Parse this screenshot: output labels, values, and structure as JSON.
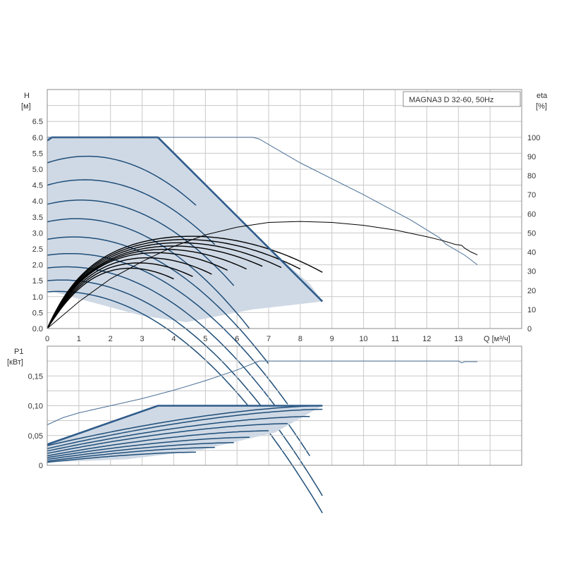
{
  "colors": {
    "envelope_fill": "#cfd9e5",
    "blue_curve": "#1f4e79",
    "max_curve": "#2f5c8a",
    "thin_curve": "#4a6f96",
    "eta_curve": "#000000",
    "grid": "#c8c8c8"
  },
  "chart_data": [
    {
      "id": "qh",
      "type": "line",
      "legend_box": "MAGNA3 D 32-60, 50Hz",
      "y_label": "H",
      "y_unit": "[м]",
      "y2_label": "eta",
      "y2_unit": "[%]",
      "x_label": "Q [м³/ч]",
      "xlim": [
        0,
        15
      ],
      "ylim": [
        0,
        7.5
      ],
      "y2lim": [
        0,
        125
      ],
      "x_ticks": [
        "0",
        "1",
        "2",
        "3",
        "4",
        "5",
        "6",
        "7",
        "8",
        "9",
        "10",
        "11",
        "12",
        "13"
      ],
      "y_ticks": [
        "0.0",
        "0.5",
        "1.0",
        "1.5",
        "2.0",
        "2.5",
        "3.0",
        "3.5",
        "4.0",
        "4.5",
        "5.0",
        "5.5",
        "6.0",
        "6.5"
      ],
      "y2_ticks": [
        "0",
        "10",
        "20",
        "30",
        "40",
        "50",
        "60",
        "70",
        "80",
        "90",
        "100"
      ],
      "grid": true,
      "envelope": [
        [
          0,
          5.95
        ],
        [
          0.2,
          6.0
        ],
        [
          3.5,
          6.0
        ],
        [
          4.5,
          5.0
        ],
        [
          6.8,
          2.75
        ],
        [
          7.6,
          2.0
        ],
        [
          8.3,
          1.4
        ],
        [
          8.7,
          0.85
        ],
        [
          6.5,
          0.6
        ],
        [
          4.4,
          0.2
        ],
        [
          3.0,
          0.4
        ],
        [
          1.5,
          0.8
        ],
        [
          0,
          1.2
        ]
      ],
      "speed_curves": [
        {
          "h0": 5.2,
          "b": 0.13,
          "xend": 4.7
        },
        {
          "h0": 4.5,
          "b": 0.12,
          "xend": 5.3
        },
        {
          "h0": 3.9,
          "b": 0.115,
          "xend": 5.9
        },
        {
          "h0": 3.35,
          "b": 0.115,
          "xend": 6.4
        },
        {
          "h0": 2.8,
          "b": 0.105,
          "xend": 7.0
        },
        {
          "h0": 2.3,
          "b": 0.1,
          "xend": 7.6
        },
        {
          "h0": 1.9,
          "b": 0.1,
          "xend": 8.3
        },
        {
          "h0": 1.5,
          "b": 0.1,
          "xend": 8.7
        },
        {
          "h0": 1.15,
          "b": 0.1,
          "xend": 8.7
        }
      ],
      "eta_curves": [
        {
          "xpk": 2.4,
          "ypk": 1.95,
          "xend": 4.0
        },
        {
          "xpk": 2.7,
          "ypk": 2.1,
          "xend": 4.6
        },
        {
          "xpk": 3.0,
          "ypk": 2.25,
          "xend": 5.2
        },
        {
          "xpk": 3.3,
          "ypk": 2.4,
          "xend": 5.7
        },
        {
          "xpk": 3.6,
          "ypk": 2.5,
          "xend": 6.3
        },
        {
          "xpk": 3.9,
          "ypk": 2.6,
          "xend": 6.8
        },
        {
          "xpk": 4.1,
          "ypk": 2.7,
          "xend": 7.4
        },
        {
          "xpk": 4.3,
          "ypk": 2.8,
          "xend": 8.0
        },
        {
          "xpk": 4.5,
          "ypk": 2.9,
          "xend": 8.7
        }
      ],
      "max_curve_outline": [
        [
          0,
          5.9
        ],
        [
          0.15,
          6.0
        ],
        [
          3.5,
          6.0
        ],
        [
          8.7,
          0.85
        ]
      ],
      "thin_qh_curve": [
        [
          0,
          6.0
        ],
        [
          6.5,
          6.0
        ],
        [
          6.7,
          5.95
        ],
        [
          8.0,
          5.2
        ],
        [
          10.0,
          4.2
        ],
        [
          11.5,
          3.4
        ],
        [
          12.4,
          2.85
        ],
        [
          12.6,
          2.65
        ],
        [
          13.2,
          2.3
        ],
        [
          13.6,
          2.0
        ]
      ],
      "eta_line": [
        [
          0,
          0
        ],
        [
          1,
          14
        ],
        [
          2,
          26
        ],
        [
          3,
          35
        ],
        [
          4,
          43
        ],
        [
          5,
          49
        ],
        [
          6,
          53
        ],
        [
          7,
          55.5
        ],
        [
          8,
          56
        ],
        [
          9,
          55.5
        ],
        [
          10,
          54
        ],
        [
          11,
          51.5
        ],
        [
          12,
          48
        ],
        [
          12.5,
          46
        ],
        [
          12.9,
          44
        ],
        [
          13.1,
          43.5
        ],
        [
          13.2,
          42
        ],
        [
          13.4,
          40
        ],
        [
          13.6,
          38.5
        ]
      ]
    },
    {
      "id": "p1",
      "type": "line",
      "y_label": "P1",
      "y_unit": "[кВт]",
      "xlim": [
        0,
        15
      ],
      "ylim": [
        0,
        0.2
      ],
      "x_ticks": [
        "0",
        "1",
        "2",
        "3",
        "4",
        "5",
        "6",
        "7",
        "8",
        "9",
        "10",
        "11",
        "12",
        "13"
      ],
      "y_ticks": [
        "0",
        "0,05",
        "0,10",
        "0,15"
      ],
      "grid": true,
      "envelope": [
        [
          0,
          0.035
        ],
        [
          3.5,
          0.1
        ],
        [
          8.7,
          0.1
        ],
        [
          7.2,
          0.055
        ],
        [
          4.8,
          0.025
        ],
        [
          2.5,
          0.01
        ],
        [
          0,
          0.005
        ]
      ],
      "power_curves": [
        {
          "p0": 0.033,
          "p1": 0.1,
          "xend": 8.7
        },
        {
          "p0": 0.028,
          "p1": 0.094,
          "xend": 8.7
        },
        {
          "p0": 0.024,
          "p1": 0.082,
          "xend": 8.3
        },
        {
          "p0": 0.02,
          "p1": 0.07,
          "xend": 7.6
        },
        {
          "p0": 0.016,
          "p1": 0.058,
          "xend": 7.0
        },
        {
          "p0": 0.013,
          "p1": 0.047,
          "xend": 6.4
        },
        {
          "p0": 0.01,
          "p1": 0.038,
          "xend": 5.9
        },
        {
          "p0": 0.007,
          "p1": 0.03,
          "xend": 5.3
        },
        {
          "p0": 0.005,
          "p1": 0.022,
          "xend": 4.7
        }
      ],
      "max_outline": [
        [
          0,
          0.035
        ],
        [
          3.5,
          0.1
        ],
        [
          8.7,
          0.1
        ]
      ],
      "thin_p1_curve": [
        [
          0,
          0.068
        ],
        [
          0.5,
          0.08
        ],
        [
          1,
          0.088
        ],
        [
          2,
          0.1
        ],
        [
          3,
          0.112
        ],
        [
          4,
          0.126
        ],
        [
          5,
          0.142
        ],
        [
          6,
          0.16
        ],
        [
          6.7,
          0.175
        ],
        [
          13,
          0.175
        ],
        [
          13.1,
          0.172
        ],
        [
          13.2,
          0.174
        ],
        [
          13.6,
          0.174
        ]
      ]
    }
  ]
}
